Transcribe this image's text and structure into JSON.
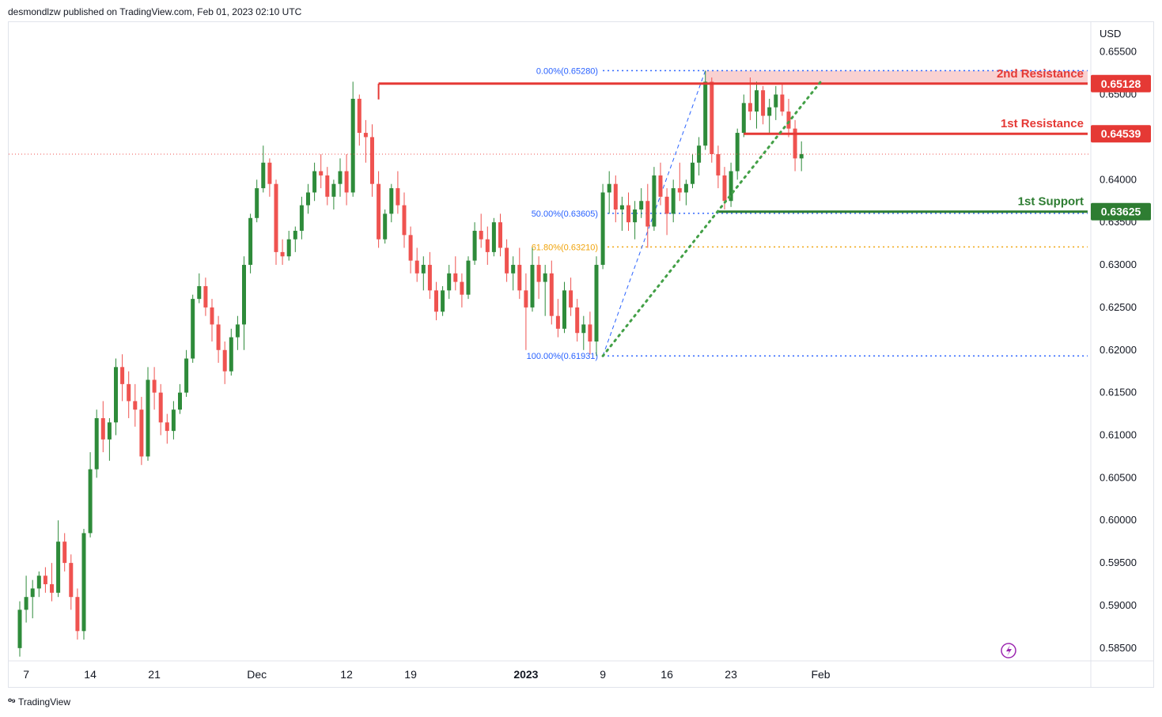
{
  "header": {
    "publisher": "desmondlzw published on TradingView.com, Feb 01, 2023 02:10 UTC"
  },
  "footer": {
    "brand": "TradingView",
    "logo_icon": "tradingview-logo-icon"
  },
  "colors": {
    "up": "#26a69a",
    "up_candle": "#2e8b3a",
    "down": "#ef5350",
    "resistance": "#e53935",
    "support": "#2e7d32",
    "fib": "#2962ff",
    "fib_618": "#f0a30a"
  },
  "chart_data": {
    "type": "candlestick",
    "symbol_currency": "USD",
    "ylim": [
      0.5835,
      0.6585
    ],
    "y_ticks": [
      "0.65500",
      "0.65000",
      "0.64500",
      "0.64000",
      "0.63500",
      "0.63000",
      "0.62500",
      "0.62000",
      "0.61500",
      "0.61000",
      "0.60500",
      "0.60000",
      "0.59500",
      "0.59000",
      "0.58500"
    ],
    "x_ticks": [
      {
        "label": "7",
        "i": 1
      },
      {
        "label": "14",
        "i": 11
      },
      {
        "label": "21",
        "i": 21
      },
      {
        "label": "Dec",
        "i": 37
      },
      {
        "label": "12",
        "i": 51
      },
      {
        "label": "19",
        "i": 61
      },
      {
        "label": "2023",
        "i": 79,
        "bold": true
      },
      {
        "label": "9",
        "i": 91
      },
      {
        "label": "16",
        "i": 101
      },
      {
        "label": "23",
        "i": 111
      },
      {
        "label": "Feb",
        "i": 125
      }
    ],
    "last_price": 0.643,
    "levels": [
      {
        "name": "2nd Resistance",
        "value": 0.65128,
        "label": "0.65128",
        "type": "resistance",
        "from_i": 56
      },
      {
        "name": "1st Resistance",
        "value": 0.64539,
        "label": "0.64539",
        "type": "resistance",
        "from_i": 113
      },
      {
        "name": "1st Support",
        "value": 0.63625,
        "label": "0.63625",
        "type": "support",
        "from_i": 109
      }
    ],
    "resistance_zone": [
      0.6512,
      0.6528
    ],
    "fibonacci": [
      {
        "label": "0.00%(0.65280)",
        "value": 0.6528,
        "color": "fib"
      },
      {
        "label": "50.00%(0.63605)",
        "value": 0.63605,
        "color": "fib"
      },
      {
        "label": "61.80%(0.63210)",
        "value": 0.6321,
        "color": "fib_618"
      },
      {
        "label": "100.00%(0.61931)",
        "value": 0.61931,
        "color": "fib"
      }
    ],
    "fib_anchor": {
      "low_i": 91,
      "low": 0.61931,
      "high_i": 107,
      "high": 0.6528
    },
    "trendline": {
      "from_i": 91,
      "from": 0.6193,
      "to_i": 125,
      "to": 0.6515
    },
    "candles": [
      [
        0.585,
        0.5905,
        0.584,
        0.5895
      ],
      [
        0.5895,
        0.5935,
        0.588,
        0.591
      ],
      [
        0.591,
        0.593,
        0.5885,
        0.592
      ],
      [
        0.592,
        0.594,
        0.591,
        0.5935
      ],
      [
        0.5935,
        0.5945,
        0.5915,
        0.5925
      ],
      [
        0.5925,
        0.595,
        0.5905,
        0.5915
      ],
      [
        0.5915,
        0.6,
        0.591,
        0.5975
      ],
      [
        0.5975,
        0.5985,
        0.594,
        0.595
      ],
      [
        0.595,
        0.596,
        0.5895,
        0.591
      ],
      [
        0.591,
        0.592,
        0.586,
        0.587
      ],
      [
        0.587,
        0.599,
        0.586,
        0.5985
      ],
      [
        0.5985,
        0.608,
        0.598,
        0.606
      ],
      [
        0.606,
        0.613,
        0.605,
        0.612
      ],
      [
        0.612,
        0.614,
        0.608,
        0.6095
      ],
      [
        0.6095,
        0.612,
        0.607,
        0.6115
      ],
      [
        0.6115,
        0.619,
        0.61,
        0.618
      ],
      [
        0.618,
        0.6195,
        0.614,
        0.616
      ],
      [
        0.616,
        0.6175,
        0.612,
        0.614
      ],
      [
        0.614,
        0.616,
        0.611,
        0.613
      ],
      [
        0.613,
        0.6145,
        0.6065,
        0.6075
      ],
      [
        0.6075,
        0.618,
        0.607,
        0.6165
      ],
      [
        0.6165,
        0.618,
        0.613,
        0.615
      ],
      [
        0.615,
        0.616,
        0.61,
        0.6115
      ],
      [
        0.6115,
        0.6125,
        0.609,
        0.6105
      ],
      [
        0.6105,
        0.614,
        0.6095,
        0.613
      ],
      [
        0.613,
        0.616,
        0.6125,
        0.615
      ],
      [
        0.615,
        0.62,
        0.6145,
        0.619
      ],
      [
        0.619,
        0.6265,
        0.6185,
        0.626
      ],
      [
        0.626,
        0.629,
        0.6255,
        0.6275
      ],
      [
        0.6275,
        0.6285,
        0.624,
        0.625
      ],
      [
        0.625,
        0.626,
        0.621,
        0.623
      ],
      [
        0.623,
        0.624,
        0.6185,
        0.62
      ],
      [
        0.62,
        0.621,
        0.616,
        0.6175
      ],
      [
        0.6175,
        0.6225,
        0.617,
        0.6215
      ],
      [
        0.6215,
        0.624,
        0.62,
        0.623
      ],
      [
        0.623,
        0.631,
        0.62,
        0.63
      ],
      [
        0.63,
        0.636,
        0.629,
        0.6355
      ],
      [
        0.6355,
        0.64,
        0.635,
        0.639
      ],
      [
        0.639,
        0.644,
        0.6385,
        0.642
      ],
      [
        0.642,
        0.6425,
        0.638,
        0.6395
      ],
      [
        0.6395,
        0.64,
        0.63,
        0.6315
      ],
      [
        0.6315,
        0.633,
        0.63,
        0.631
      ],
      [
        0.631,
        0.634,
        0.6305,
        0.633
      ],
      [
        0.633,
        0.6345,
        0.6315,
        0.634
      ],
      [
        0.634,
        0.638,
        0.633,
        0.637
      ],
      [
        0.637,
        0.6395,
        0.636,
        0.6385
      ],
      [
        0.6385,
        0.642,
        0.6375,
        0.641
      ],
      [
        0.641,
        0.643,
        0.639,
        0.6405
      ],
      [
        0.6405,
        0.6415,
        0.637,
        0.638
      ],
      [
        0.638,
        0.64,
        0.6365,
        0.6395
      ],
      [
        0.6395,
        0.6425,
        0.638,
        0.641
      ],
      [
        0.641,
        0.643,
        0.637,
        0.6385
      ],
      [
        0.6385,
        0.6515,
        0.638,
        0.6495
      ],
      [
        0.6495,
        0.65,
        0.644,
        0.6455
      ],
      [
        0.6455,
        0.647,
        0.642,
        0.645
      ],
      [
        0.645,
        0.6465,
        0.638,
        0.6395
      ],
      [
        0.6395,
        0.641,
        0.632,
        0.633
      ],
      [
        0.633,
        0.6365,
        0.6325,
        0.636
      ],
      [
        0.636,
        0.6395,
        0.635,
        0.639
      ],
      [
        0.639,
        0.641,
        0.636,
        0.637
      ],
      [
        0.637,
        0.6385,
        0.632,
        0.6335
      ],
      [
        0.6335,
        0.6345,
        0.629,
        0.6305
      ],
      [
        0.6305,
        0.632,
        0.628,
        0.629
      ],
      [
        0.629,
        0.631,
        0.627,
        0.63
      ],
      [
        0.63,
        0.6315,
        0.626,
        0.627
      ],
      [
        0.627,
        0.628,
        0.6235,
        0.6245
      ],
      [
        0.6245,
        0.6275,
        0.624,
        0.627
      ],
      [
        0.627,
        0.63,
        0.626,
        0.629
      ],
      [
        0.629,
        0.631,
        0.627,
        0.628
      ],
      [
        0.628,
        0.629,
        0.625,
        0.6265
      ],
      [
        0.6265,
        0.631,
        0.626,
        0.6305
      ],
      [
        0.6305,
        0.635,
        0.63,
        0.634
      ],
      [
        0.634,
        0.636,
        0.632,
        0.633
      ],
      [
        0.633,
        0.6345,
        0.63,
        0.6315
      ],
      [
        0.6315,
        0.6355,
        0.631,
        0.635
      ],
      [
        0.635,
        0.636,
        0.631,
        0.632
      ],
      [
        0.632,
        0.633,
        0.628,
        0.629
      ],
      [
        0.629,
        0.631,
        0.627,
        0.63
      ],
      [
        0.63,
        0.632,
        0.626,
        0.627
      ],
      [
        0.627,
        0.629,
        0.62,
        0.625
      ],
      [
        0.625,
        0.632,
        0.6245,
        0.63
      ],
      [
        0.63,
        0.631,
        0.626,
        0.628
      ],
      [
        0.628,
        0.63,
        0.624,
        0.629
      ],
      [
        0.629,
        0.6305,
        0.623,
        0.624
      ],
      [
        0.624,
        0.626,
        0.6215,
        0.6225
      ],
      [
        0.6225,
        0.628,
        0.622,
        0.627
      ],
      [
        0.627,
        0.6285,
        0.624,
        0.625
      ],
      [
        0.625,
        0.626,
        0.621,
        0.622
      ],
      [
        0.622,
        0.624,
        0.62,
        0.623
      ],
      [
        0.623,
        0.6245,
        0.6195,
        0.621
      ],
      [
        0.621,
        0.631,
        0.6193,
        0.63
      ],
      [
        0.63,
        0.6395,
        0.6295,
        0.6385
      ],
      [
        0.6385,
        0.641,
        0.636,
        0.6395
      ],
      [
        0.6395,
        0.6405,
        0.635,
        0.6365
      ],
      [
        0.6365,
        0.638,
        0.634,
        0.637
      ],
      [
        0.637,
        0.6385,
        0.634,
        0.635
      ],
      [
        0.635,
        0.6375,
        0.633,
        0.6365
      ],
      [
        0.6365,
        0.639,
        0.6355,
        0.6375
      ],
      [
        0.6375,
        0.6395,
        0.632,
        0.6345
      ],
      [
        0.6345,
        0.6415,
        0.634,
        0.6405
      ],
      [
        0.6405,
        0.642,
        0.637,
        0.638
      ],
      [
        0.638,
        0.639,
        0.6335,
        0.636
      ],
      [
        0.636,
        0.64,
        0.635,
        0.639
      ],
      [
        0.639,
        0.642,
        0.6375,
        0.6385
      ],
      [
        0.6385,
        0.64,
        0.637,
        0.6395
      ],
      [
        0.6395,
        0.643,
        0.639,
        0.642
      ],
      [
        0.642,
        0.645,
        0.6405,
        0.644
      ],
      [
        0.644,
        0.6528,
        0.6435,
        0.6515
      ],
      [
        0.6515,
        0.652,
        0.642,
        0.643
      ],
      [
        0.643,
        0.644,
        0.639,
        0.6405
      ],
      [
        0.6405,
        0.6415,
        0.6365,
        0.6375
      ],
      [
        0.6375,
        0.642,
        0.6368,
        0.641
      ],
      [
        0.641,
        0.646,
        0.64,
        0.6455
      ],
      [
        0.6455,
        0.65,
        0.645,
        0.649
      ],
      [
        0.649,
        0.652,
        0.647,
        0.648
      ],
      [
        0.648,
        0.6515,
        0.646,
        0.6505
      ],
      [
        0.6505,
        0.651,
        0.6465,
        0.6475
      ],
      [
        0.6475,
        0.6495,
        0.6455,
        0.6485
      ],
      [
        0.6485,
        0.651,
        0.647,
        0.65
      ],
      [
        0.65,
        0.6512,
        0.6475,
        0.648
      ],
      [
        0.648,
        0.6495,
        0.645,
        0.646
      ],
      [
        0.646,
        0.647,
        0.641,
        0.6425
      ],
      [
        0.6425,
        0.6445,
        0.641,
        0.643
      ]
    ]
  }
}
